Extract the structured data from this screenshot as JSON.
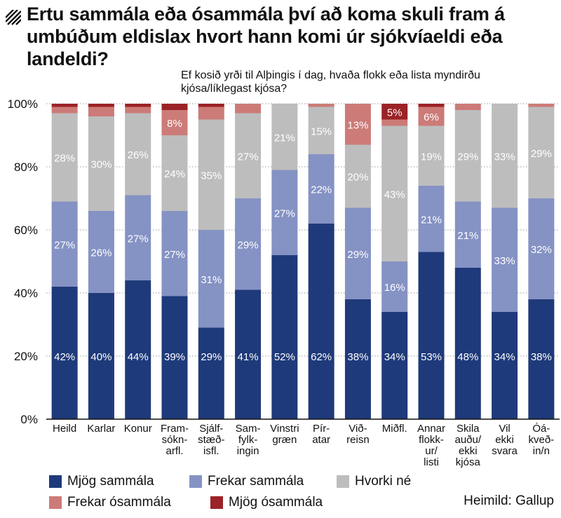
{
  "title": "Ertu sammála eða ósammála því að koma skuli fram á umbúðum eldislax hvort hann komi úr sjókvíaeldi eða landeldi?",
  "subtitle": "Ef kosið yrði til Alþingis í dag, hvaða flokk eða lista myndirðu kjósa/líklegast kjósa?",
  "source": "Heimild: Gallup",
  "chart_data": {
    "type": "bar",
    "stacked": true,
    "orientation": "vertical",
    "y_unit": "%",
    "ylim": [
      0,
      100
    ],
    "y_ticks": [
      "0%",
      "20%",
      "40%",
      "60%",
      "80%",
      "100%"
    ],
    "grid": true,
    "legend_position": "bottom",
    "categories": [
      [
        "Heild"
      ],
      [
        "Karlar"
      ],
      [
        "Konur"
      ],
      [
        "Fram-",
        "sókn-",
        "arfl."
      ],
      [
        "Sjálf-",
        "stæð-",
        "isfl."
      ],
      [
        "Sam-",
        "fylk-",
        "ingin"
      ],
      [
        "Vinstri",
        "græn"
      ],
      [
        "Pír-",
        "atar"
      ],
      [
        "Við-",
        "reisn"
      ],
      [
        "Miðfl."
      ],
      [
        "Annar",
        "flokk-",
        "ur/",
        "listi"
      ],
      [
        "Skila",
        "auðu/",
        "ekki",
        "kjósa"
      ],
      [
        "Vil",
        "ekki",
        "svara"
      ],
      [
        "Óá-",
        "kveð-",
        "in/n"
      ]
    ],
    "series": [
      {
        "name": "Mjög sammála",
        "color": "#1f3a7a",
        "label_color": "#ffffff",
        "values": [
          42,
          40,
          44,
          39,
          29,
          41,
          52,
          62,
          38,
          34,
          53,
          48,
          34,
          38
        ],
        "labels": [
          "42%",
          "40%",
          "44%",
          "39%",
          "29%",
          "41%",
          "52%",
          "62%",
          "38%",
          "34%",
          "53%",
          "48%",
          "34%",
          "38%"
        ]
      },
      {
        "name": "Frekar sammála",
        "color": "#8592c4",
        "label_color": "#ffffff",
        "values": [
          27,
          26,
          27,
          27,
          31,
          29,
          27,
          22,
          29,
          16,
          21,
          21,
          33,
          32
        ],
        "labels": [
          "27%",
          "26%",
          "27%",
          "27%",
          "31%",
          "29%",
          "27%",
          "22%",
          "29%",
          "16%",
          "21%",
          "21%",
          "33%",
          "32%"
        ]
      },
      {
        "name": "Hvorki né",
        "color": "#bdbdbd",
        "label_color": "#ffffff",
        "values": [
          28,
          30,
          26,
          24,
          35,
          27,
          21,
          15,
          20,
          43,
          19,
          29,
          33,
          29
        ],
        "labels": [
          "28%",
          "30%",
          "26%",
          "24%",
          "35%",
          "27%",
          "21%",
          "15%",
          "20%",
          "43%",
          "19%",
          "29%",
          "33%",
          "29%"
        ]
      },
      {
        "name": "Frekar ósammála",
        "color": "#cc7b78",
        "label_color": "#ffffff",
        "values": [
          2,
          3,
          2,
          8,
          4,
          3,
          0,
          1,
          13,
          2,
          6,
          2,
          0,
          1
        ],
        "labels": [
          "",
          "",
          "",
          "8%",
          "",
          "",
          "",
          "",
          "13%",
          "",
          "6%",
          "",
          "",
          ""
        ]
      },
      {
        "name": "Mjög ósammála",
        "color": "#9b2226",
        "label_color": "#ffffff",
        "values": [
          1,
          1,
          1,
          2,
          1,
          0,
          0,
          0,
          0,
          5,
          1,
          0,
          0,
          0
        ],
        "labels": [
          "",
          "",
          "",
          "",
          "",
          "",
          "",
          "",
          "",
          "5%",
          "",
          "",
          "",
          ""
        ]
      }
    ]
  }
}
